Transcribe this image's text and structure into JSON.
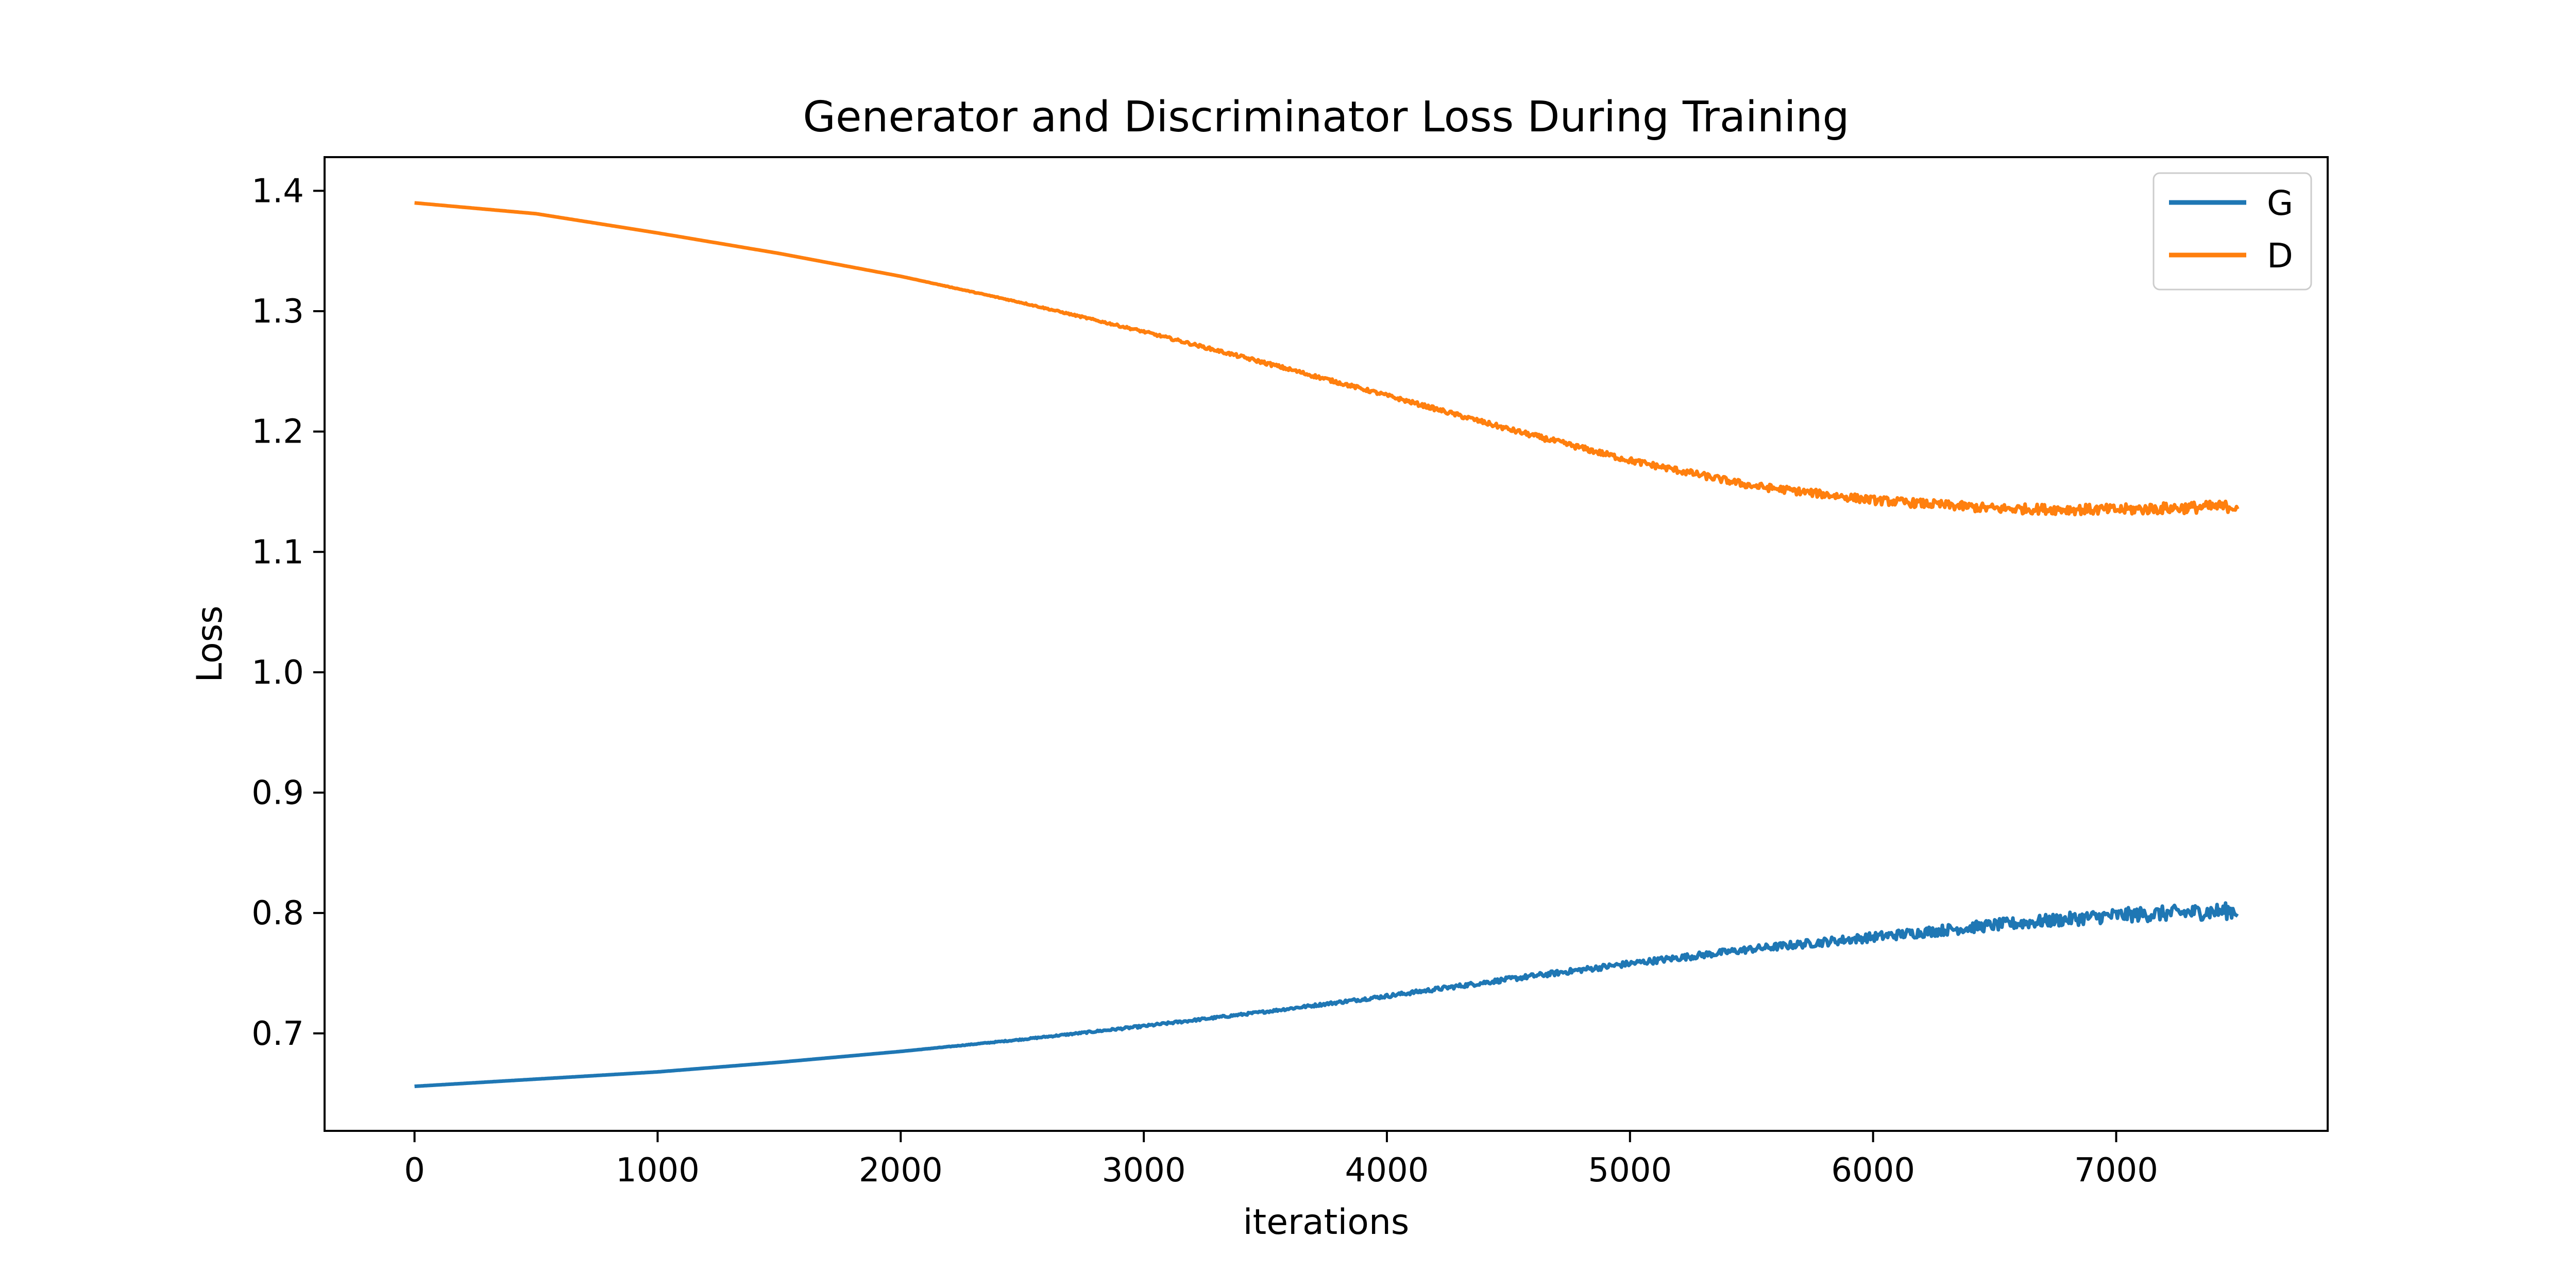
{
  "chart_data": {
    "type": "line",
    "title": "Generator and Discriminator Loss During Training",
    "xlabel": "iterations",
    "ylabel": "Loss",
    "xlim": [
      -370,
      7870
    ],
    "ylim": [
      0.619,
      1.428
    ],
    "xticks": [
      0,
      1000,
      2000,
      3000,
      4000,
      5000,
      6000,
      7000
    ],
    "yticks": [
      0.7,
      0.8,
      0.9,
      1.0,
      1.1,
      1.2,
      1.3,
      1.4
    ],
    "xtick_labels": [
      "0",
      "1000",
      "2000",
      "3000",
      "4000",
      "5000",
      "6000",
      "7000"
    ],
    "ytick_labels": [
      "0.7",
      "0.8",
      "0.9",
      "1.0",
      "1.1",
      "1.2",
      "1.3",
      "1.4"
    ],
    "grid": false,
    "legend_position": "top-right",
    "series": [
      {
        "name": "G",
        "color": "#1f77b4",
        "x": [
          0,
          500,
          1000,
          1500,
          2000,
          2500,
          3000,
          3500,
          4000,
          4500,
          5000,
          5500,
          6000,
          6500,
          7000,
          7500
        ],
        "y": [
          0.656,
          0.662,
          0.668,
          0.676,
          0.685,
          0.695,
          0.706,
          0.718,
          0.731,
          0.745,
          0.758,
          0.77,
          0.78,
          0.79,
          0.798,
          0.802
        ],
        "noise": [
          0.0,
          0.0,
          0.0,
          0.0,
          0.0,
          0.0005,
          0.001,
          0.001,
          0.0015,
          0.002,
          0.0025,
          0.003,
          0.004,
          0.005,
          0.006,
          0.007
        ]
      },
      {
        "name": "D",
        "color": "#ff7f0e",
        "x": [
          0,
          500,
          1000,
          1500,
          2000,
          2500,
          3000,
          3500,
          4000,
          4500,
          5000,
          5500,
          6000,
          6500,
          7000,
          7500
        ],
        "y": [
          1.39,
          1.381,
          1.365,
          1.348,
          1.329,
          1.307,
          1.283,
          1.257,
          1.23,
          1.202,
          1.176,
          1.155,
          1.143,
          1.136,
          1.135,
          1.138
        ],
        "noise": [
          0.0,
          0.0,
          0.0,
          0.0,
          0.0,
          0.0005,
          0.001,
          0.0015,
          0.0015,
          0.002,
          0.0025,
          0.003,
          0.0035,
          0.004,
          0.0045,
          0.005
        ]
      }
    ]
  }
}
